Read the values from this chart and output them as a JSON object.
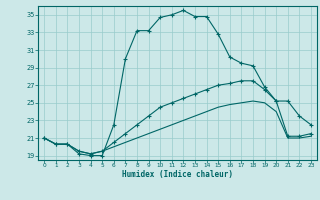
{
  "xlabel": "Humidex (Indice chaleur)",
  "bg_color": "#cce8e8",
  "grid_color": "#99cccc",
  "line_color": "#006666",
  "xlim": [
    -0.5,
    23.5
  ],
  "ylim": [
    18.5,
    36.0
  ],
  "yticks": [
    19,
    21,
    23,
    25,
    27,
    29,
    31,
    33,
    35
  ],
  "xticks": [
    0,
    1,
    2,
    3,
    4,
    5,
    6,
    7,
    8,
    9,
    10,
    11,
    12,
    13,
    14,
    15,
    16,
    17,
    18,
    19,
    20,
    21,
    22,
    23
  ],
  "series1_x": [
    0,
    1,
    2,
    3,
    4,
    5,
    6,
    7,
    8,
    9,
    10,
    11,
    12,
    13,
    14,
    15,
    16,
    17,
    18,
    19,
    20,
    21,
    22,
    23
  ],
  "series1_y": [
    21.0,
    20.3,
    20.3,
    19.2,
    19.0,
    19.0,
    22.5,
    30.0,
    33.2,
    33.2,
    34.7,
    35.0,
    35.5,
    34.8,
    34.8,
    32.8,
    30.2,
    29.5,
    29.2,
    26.8,
    25.2,
    25.2,
    23.5,
    22.5
  ],
  "series2_x": [
    0,
    1,
    2,
    3,
    4,
    5,
    6,
    7,
    8,
    9,
    10,
    11,
    12,
    13,
    14,
    15,
    16,
    17,
    18,
    19,
    20,
    21,
    22,
    23
  ],
  "series2_y": [
    21.0,
    20.3,
    20.3,
    19.5,
    19.2,
    19.5,
    20.5,
    21.5,
    22.5,
    23.5,
    24.5,
    25.0,
    25.5,
    26.0,
    26.5,
    27.0,
    27.2,
    27.5,
    27.5,
    26.5,
    25.2,
    21.2,
    21.2,
    21.5
  ],
  "series3_x": [
    0,
    1,
    2,
    3,
    4,
    5,
    6,
    7,
    8,
    9,
    10,
    11,
    12,
    13,
    14,
    15,
    16,
    17,
    18,
    19,
    20,
    21,
    22,
    23
  ],
  "series3_y": [
    21.0,
    20.3,
    20.3,
    19.5,
    19.2,
    19.5,
    20.0,
    20.5,
    21.0,
    21.5,
    22.0,
    22.5,
    23.0,
    23.5,
    24.0,
    24.5,
    24.8,
    25.0,
    25.2,
    25.0,
    24.0,
    21.0,
    21.0,
    21.2
  ]
}
